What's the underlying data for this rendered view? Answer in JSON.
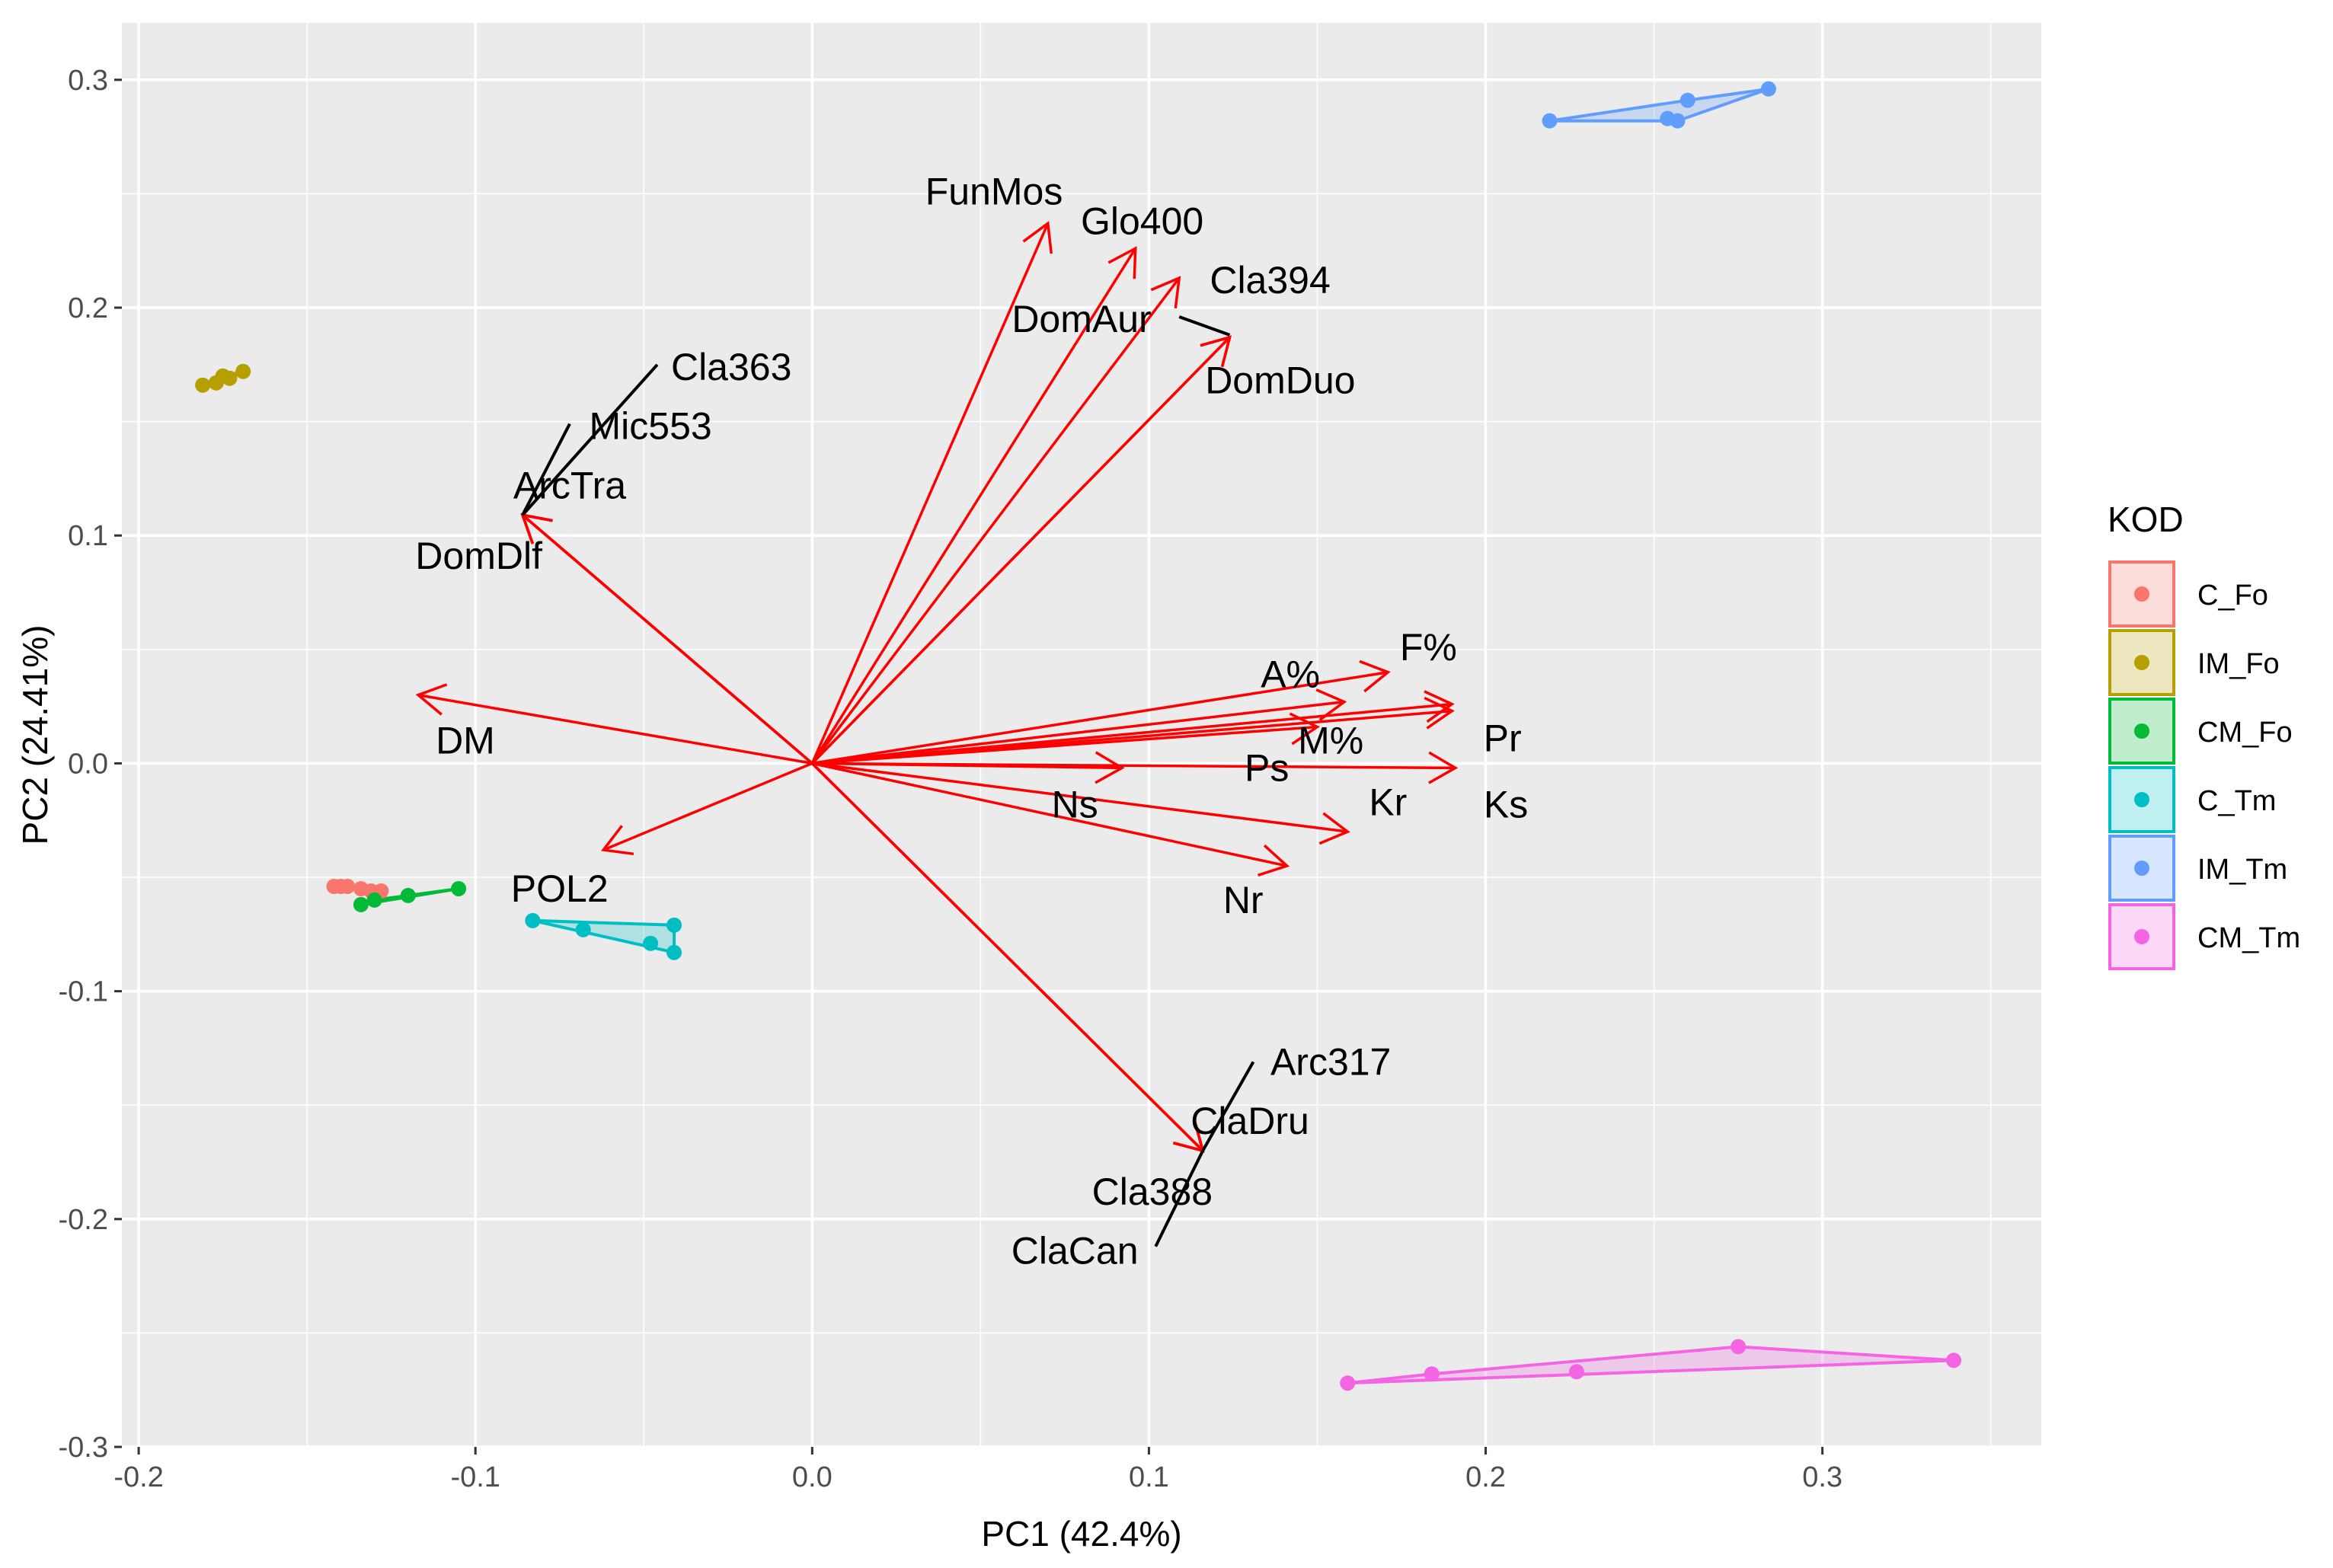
{
  "chart_data": {
    "type": "scatter",
    "subtype": "pca-biplot",
    "xlabel": "PC1 (42.4%)",
    "ylabel": "PC2 (24.41%)",
    "xlim": [
      -0.205,
      0.365
    ],
    "ylim": [
      -0.3,
      0.325
    ],
    "xticks": [
      -0.2,
      -0.1,
      0.0,
      0.1,
      0.2,
      0.3
    ],
    "xtick_labels": [
      "-0.2",
      "-0.1",
      "0.0",
      "0.1",
      "0.2",
      "0.3"
    ],
    "yticks": [
      -0.3,
      -0.2,
      -0.1,
      0.0,
      0.1,
      0.2,
      0.3
    ],
    "ytick_labels": [
      "-0.3",
      "-0.2",
      "-0.1",
      "0.0",
      "0.1",
      "0.2",
      "0.3"
    ],
    "grid": true,
    "background_color": "#ebebeb",
    "arrow_color": "#ff0000",
    "legend": {
      "title": "KOD",
      "position": "right"
    },
    "groups": [
      {
        "name": "C_Fo",
        "color": "#f8766d",
        "points": [
          [
            -0.142,
            -0.054
          ],
          [
            -0.14,
            -0.054
          ],
          [
            -0.138,
            -0.054
          ],
          [
            -0.134,
            -0.055
          ],
          [
            -0.131,
            -0.056
          ],
          [
            -0.128,
            -0.056
          ]
        ]
      },
      {
        "name": "IM_Fo",
        "color": "#b79f00",
        "points": [
          [
            -0.181,
            0.166
          ],
          [
            -0.177,
            0.167
          ],
          [
            -0.175,
            0.17
          ],
          [
            -0.173,
            0.169
          ],
          [
            -0.169,
            0.172
          ]
        ]
      },
      {
        "name": "CM_Fo",
        "color": "#00ba38",
        "points": [
          [
            -0.134,
            -0.062
          ],
          [
            -0.13,
            -0.06
          ],
          [
            -0.12,
            -0.058
          ],
          [
            -0.105,
            -0.055
          ]
        ]
      },
      {
        "name": "C_Tm",
        "color": "#00bfc4",
        "points": [
          [
            -0.083,
            -0.069
          ],
          [
            -0.068,
            -0.073
          ],
          [
            -0.048,
            -0.079
          ],
          [
            -0.041,
            -0.083
          ],
          [
            -0.041,
            -0.071
          ]
        ]
      },
      {
        "name": "IM_Tm",
        "color": "#619cff",
        "points": [
          [
            0.219,
            0.282
          ],
          [
            0.254,
            0.283
          ],
          [
            0.257,
            0.282
          ],
          [
            0.26,
            0.291
          ],
          [
            0.284,
            0.296
          ]
        ]
      },
      {
        "name": "CM_Tm",
        "color": "#f564e3",
        "points": [
          [
            0.159,
            -0.272
          ],
          [
            0.184,
            -0.268
          ],
          [
            0.227,
            -0.267
          ],
          [
            0.275,
            -0.256
          ],
          [
            0.339,
            -0.262
          ]
        ]
      }
    ],
    "arrows": [
      {
        "label": "FunMos",
        "x": 0.07,
        "y": 0.237
      },
      {
        "label": "Glo400",
        "x": 0.096,
        "y": 0.226
      },
      {
        "label": "Cla394",
        "x": 0.109,
        "y": 0.213
      },
      {
        "label": "DomAur",
        "x": 0.124,
        "y": 0.187
      },
      {
        "label": "DomDuo",
        "x": 0.124,
        "y": 0.187
      },
      {
        "label": "Cla363",
        "x": -0.086,
        "y": 0.109
      },
      {
        "label": "Mic553",
        "x": -0.086,
        "y": 0.109
      },
      {
        "label": "ArcTra",
        "x": -0.086,
        "y": 0.109
      },
      {
        "label": "DomDlf",
        "x": -0.086,
        "y": 0.109
      },
      {
        "label": "DM",
        "x": -0.117,
        "y": 0.03
      },
      {
        "label": "POL2",
        "x": -0.062,
        "y": -0.038
      },
      {
        "label": "A%",
        "x": 0.171,
        "y": 0.04
      },
      {
        "label": "F%",
        "x": 0.158,
        "y": 0.027
      },
      {
        "label": "Pr",
        "x": 0.19,
        "y": 0.026
      },
      {
        "label": "M%",
        "x": 0.19,
        "y": 0.023
      },
      {
        "label": "Ps",
        "x": 0.15,
        "y": 0.016
      },
      {
        "label": "Ns",
        "x": 0.092,
        "y": -0.002
      },
      {
        "label": "Ks",
        "x": 0.191,
        "y": -0.002
      },
      {
        "label": "Kr",
        "x": 0.159,
        "y": -0.03
      },
      {
        "label": "Nr",
        "x": 0.141,
        "y": -0.045
      },
      {
        "label": "Arc317",
        "x": 0.116,
        "y": -0.17
      },
      {
        "label": "ClaDru",
        "x": 0.116,
        "y": -0.17
      },
      {
        "label": "Cla388",
        "x": 0.116,
        "y": -0.17
      },
      {
        "label": "ClaCan",
        "x": 0.116,
        "y": -0.17
      }
    ],
    "labels": [
      {
        "text": "FunMos",
        "x": 0.054,
        "y": 0.251,
        "leader": null
      },
      {
        "text": "Glo400",
        "x": 0.098,
        "y": 0.238,
        "leader": null
      },
      {
        "text": "Cla394",
        "x": 0.136,
        "y": 0.212,
        "leader": null
      },
      {
        "text": "DomAur",
        "x": 0.08,
        "y": 0.195,
        "leader": [
          [
            0.109,
            0.196
          ],
          [
            0.124,
            0.188
          ]
        ]
      },
      {
        "text": "DomDuo",
        "x": 0.139,
        "y": 0.168,
        "leader": null
      },
      {
        "text": "Cla363",
        "x": -0.024,
        "y": 0.174,
        "leader": [
          [
            -0.046,
            0.175
          ],
          [
            -0.086,
            0.109
          ]
        ]
      },
      {
        "text": "Mic553",
        "x": -0.048,
        "y": 0.148,
        "leader": [
          [
            -0.072,
            0.149
          ],
          [
            -0.086,
            0.109
          ]
        ]
      },
      {
        "text": "ArcTra",
        "x": -0.072,
        "y": 0.122,
        "leader": null
      },
      {
        "text": "DomDlf",
        "x": -0.099,
        "y": 0.091,
        "leader": null
      },
      {
        "text": "DM",
        "x": -0.103,
        "y": 0.01,
        "leader": null
      },
      {
        "text": "POL2",
        "x": -0.075,
        "y": -0.055,
        "leader": null
      },
      {
        "text": "A%",
        "x": 0.142,
        "y": 0.039,
        "leader": null
      },
      {
        "text": "F%",
        "x": 0.183,
        "y": 0.051,
        "leader": null
      },
      {
        "text": "Pr",
        "x": 0.205,
        "y": 0.011,
        "leader": null
      },
      {
        "text": "M%",
        "x": 0.154,
        "y": 0.01,
        "leader": null
      },
      {
        "text": "Ps",
        "x": 0.135,
        "y": -0.002,
        "leader": null
      },
      {
        "text": "Ns",
        "x": 0.078,
        "y": -0.018,
        "leader": null
      },
      {
        "text": "Ks",
        "x": 0.206,
        "y": -0.018,
        "leader": null
      },
      {
        "text": "Kr",
        "x": 0.171,
        "y": -0.017,
        "leader": null
      },
      {
        "text": "Nr",
        "x": 0.128,
        "y": -0.06,
        "leader": null
      },
      {
        "text": "Arc317",
        "x": 0.154,
        "y": -0.131,
        "leader": [
          [
            0.131,
            -0.131
          ],
          [
            0.116,
            -0.17
          ]
        ]
      },
      {
        "text": "ClaDru",
        "x": 0.13,
        "y": -0.157,
        "leader": null
      },
      {
        "text": "Cla388",
        "x": 0.101,
        "y": -0.188,
        "leader": null
      },
      {
        "text": "ClaCan",
        "x": 0.078,
        "y": -0.214,
        "leader": [
          [
            0.102,
            -0.212
          ],
          [
            0.116,
            -0.17
          ]
        ]
      }
    ]
  }
}
